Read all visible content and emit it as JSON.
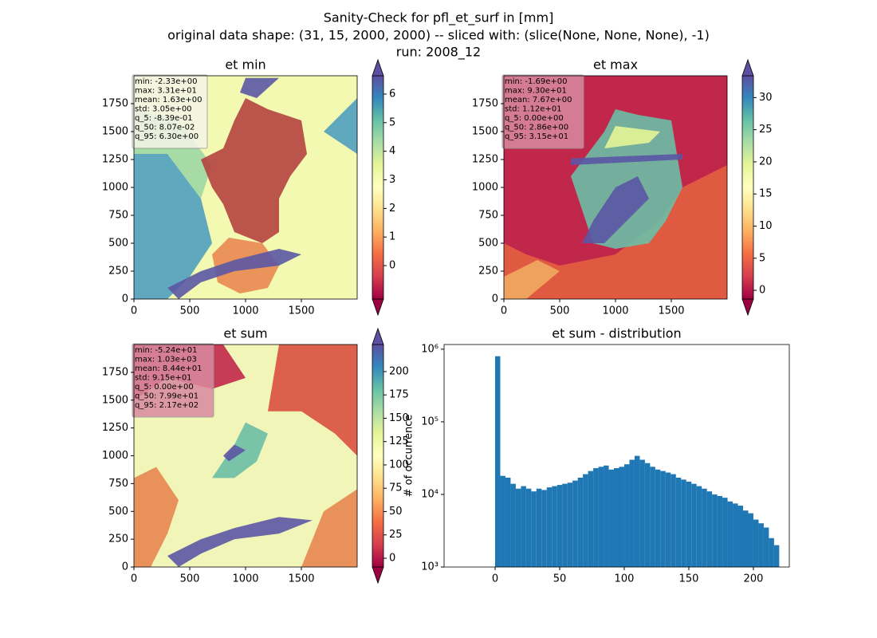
{
  "suptitle": [
    "Sanity-Check for pfl_et_surf in [mm]",
    "original data shape: (31, 15, 2000, 2000) -- sliced with: (slice(None, None, None), -1)",
    "run: 2008_12"
  ],
  "chart_data": [
    {
      "type": "heatmap",
      "title": "et min",
      "cmap": "Spectral",
      "xlim": [
        0,
        2000
      ],
      "ylim": [
        0,
        2000
      ],
      "xticks": [
        0,
        500,
        1000,
        1500
      ],
      "yticks": [
        0,
        250,
        500,
        750,
        1000,
        1250,
        1500,
        1750
      ],
      "clim": [
        -1.17,
        6.64
      ],
      "cticks": [
        0,
        1,
        2,
        3,
        4,
        5,
        6
      ],
      "stats": [
        "min: -2.33e+00",
        "max: 3.31e+01",
        "mean: 1.63e+00",
        "std: 3.05e+00",
        "q_5: -8.39e-01",
        "q_50: 8.07e-02",
        "q_95: 6.30e+00"
      ]
    },
    {
      "type": "heatmap",
      "title": "et max",
      "cmap": "Spectral",
      "xlim": [
        0,
        2000
      ],
      "ylim": [
        0,
        2000
      ],
      "xticks": [
        0,
        500,
        1000,
        1500
      ],
      "yticks": [
        0,
        250,
        500,
        750,
        1000,
        1250,
        1500,
        1750
      ],
      "clim": [
        -1.36,
        33.4
      ],
      "cticks": [
        0,
        5,
        10,
        15,
        20,
        25,
        30
      ],
      "stats": [
        "min: -1.69e+00",
        "max: 9.30e+01",
        "mean: 7.67e+00",
        "std: 1.12e+01",
        "q_5: 0.00e+00",
        "q_50: 2.86e+00",
        "q_95: 3.15e+01"
      ]
    },
    {
      "type": "heatmap",
      "title": "et sum",
      "cmap": "Spectral",
      "xlim": [
        0,
        2000
      ],
      "ylim": [
        0,
        2000
      ],
      "xticks": [
        0,
        500,
        1000,
        1500
      ],
      "yticks": [
        0,
        250,
        500,
        750,
        1000,
        1250,
        1500,
        1750
      ],
      "clim": [
        -9.4,
        229
      ],
      "cticks": [
        0,
        25,
        50,
        75,
        100,
        125,
        150,
        175,
        200
      ],
      "stats": [
        "min: -5.24e+01",
        "max: 1.03e+03",
        "mean: 8.44e+01",
        "std: 9.15e+01",
        "q_5: 0.00e+00",
        "q_50: 7.99e+01",
        "q_95: 2.17e+02"
      ]
    },
    {
      "type": "histogram",
      "title": "et sum - distribution",
      "ylabel": "# of occurrence",
      "color": "#1f77b4",
      "log": true,
      "xlim": [
        -39.5,
        227.8
      ],
      "ylim": [
        1000,
        1160000
      ],
      "xticks": [
        0,
        50,
        100,
        150,
        200
      ],
      "yticks": [
        {
          "value": 1000,
          "label": "10³"
        },
        {
          "value": 10000,
          "label": "10⁴"
        },
        {
          "value": 100000,
          "label": "10⁵"
        },
        {
          "value": 1000000,
          "label": "10⁶"
        }
      ],
      "bins": [
        0,
        4,
        8,
        12,
        16,
        20,
        24,
        28,
        32,
        36,
        40,
        44,
        48,
        52,
        56,
        60,
        64,
        68,
        72,
        76,
        80,
        84,
        88,
        92,
        96,
        100,
        104,
        108,
        112,
        116,
        120,
        124,
        128,
        132,
        136,
        140,
        144,
        148,
        152,
        156,
        160,
        164,
        168,
        172,
        176,
        180,
        184,
        188,
        192,
        196,
        200,
        204,
        208,
        212,
        216,
        220
      ],
      "counts": [
        800000,
        18000,
        17000,
        14000,
        12000,
        13000,
        12000,
        11000,
        12000,
        11500,
        12500,
        13000,
        13500,
        14000,
        14500,
        15500,
        17000,
        19000,
        21000,
        23000,
        24000,
        25000,
        22000,
        23000,
        24000,
        26000,
        30000,
        34000,
        30000,
        27000,
        24000,
        22000,
        21000,
        20000,
        19000,
        17000,
        16000,
        15000,
        14000,
        13000,
        12000,
        11000,
        10000,
        9500,
        9000,
        8000,
        7500,
        7000,
        6000,
        5500,
        4500,
        4000,
        3500,
        2500,
        2000
      ]
    }
  ]
}
